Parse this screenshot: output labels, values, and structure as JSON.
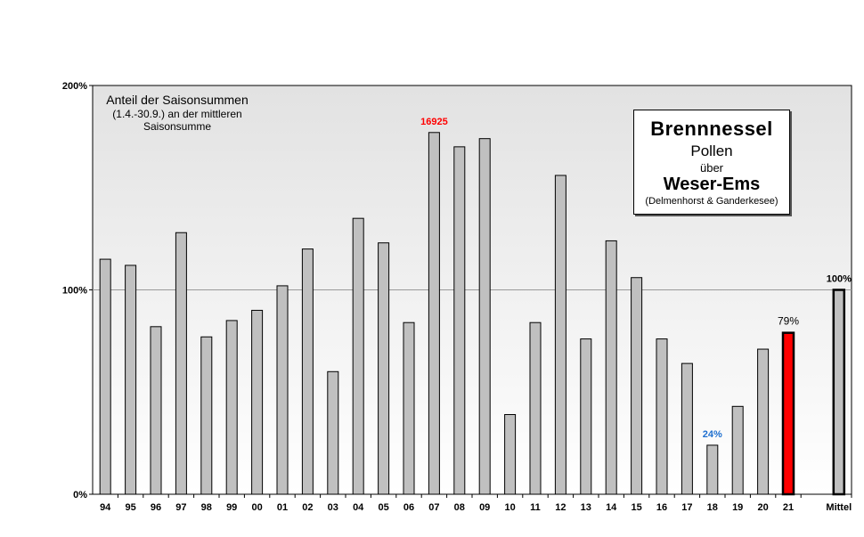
{
  "chart_data": {
    "type": "bar",
    "title": "Brennnessel",
    "legend_box": {
      "title": "Brennnessel",
      "line2": "Pollen",
      "line3": "über",
      "region": "Weser-Ems",
      "subregion": "(Delmenhorst & Ganderkesee)"
    },
    "description": {
      "line1": "Anteil der Saisonsummen",
      "line2": "(1.4.-30.9.) an der mittleren",
      "line3": "Saisonsumme"
    },
    "ylim": [
      0,
      200
    ],
    "y_ticks": [
      "0%",
      "100%",
      "200%"
    ],
    "y_tick_values": [
      0,
      100,
      200
    ],
    "grid": "horizontal at 100%",
    "categories": [
      "94",
      "95",
      "96",
      "97",
      "98",
      "99",
      "00",
      "01",
      "02",
      "03",
      "04",
      "05",
      "06",
      "07",
      "08",
      "09",
      "10",
      "11",
      "12",
      "13",
      "14",
      "15",
      "16",
      "17",
      "18",
      "19",
      "20",
      "21",
      "Mittel"
    ],
    "values": [
      115,
      112,
      82,
      128,
      77,
      85,
      90,
      102,
      120,
      60,
      135,
      123,
      84,
      177,
      170,
      174,
      39,
      84,
      156,
      76,
      124,
      106,
      76,
      64,
      24,
      43,
      71,
      79,
      100
    ],
    "colors": {
      "default": "#c0c0c0",
      "current": "#ff0000",
      "mean": "#c0c0c0",
      "plot_gradient_top": "#e2e2e2",
      "plot_gradient_bottom": "#ffffff"
    },
    "annotations": [
      {
        "category": "07",
        "text": "16925",
        "color": "#ff0000"
      },
      {
        "category": "18",
        "text": "24%",
        "color": "#1e6fcf"
      },
      {
        "category": "21",
        "text": "79%",
        "color": "#000000"
      },
      {
        "category": "Mittel",
        "text": "100%",
        "color": "#000000"
      }
    ]
  }
}
